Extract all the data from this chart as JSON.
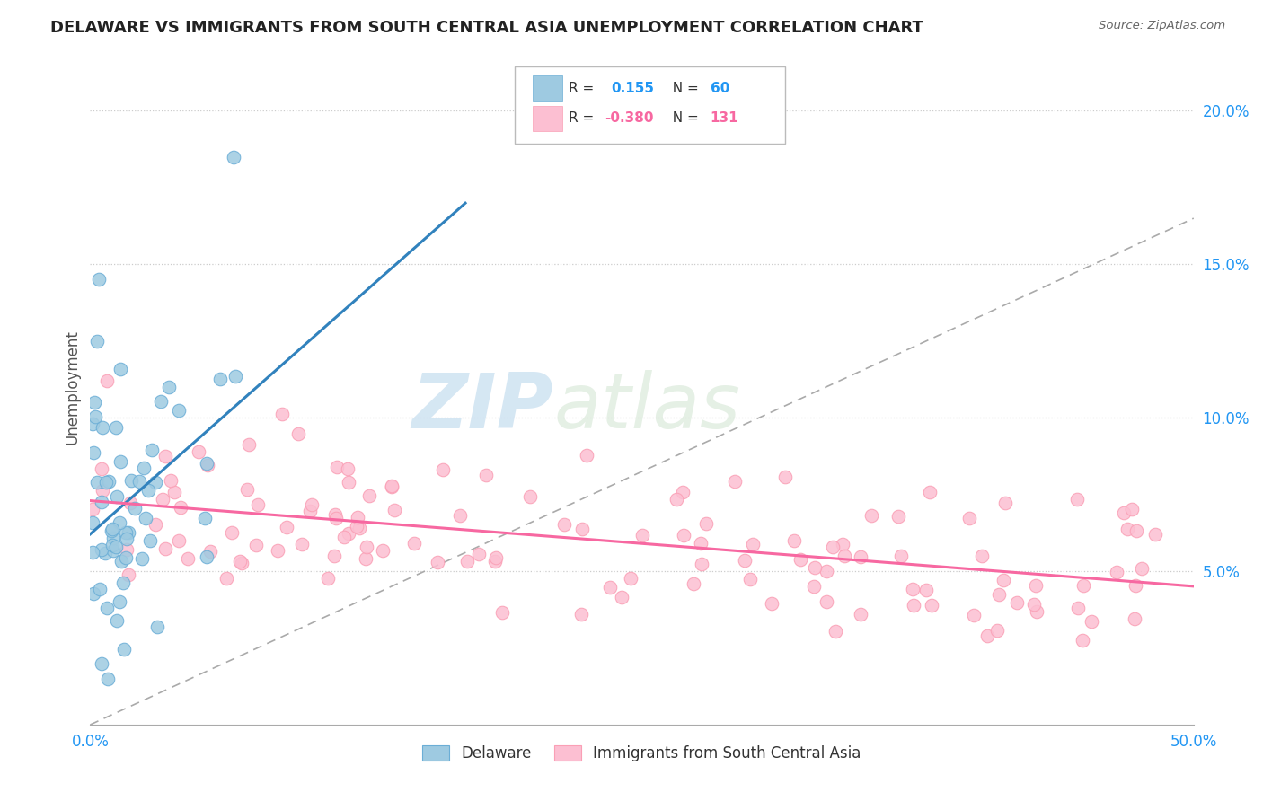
{
  "title": "DELAWARE VS IMMIGRANTS FROM SOUTH CENTRAL ASIA UNEMPLOYMENT CORRELATION CHART",
  "source": "Source: ZipAtlas.com",
  "ylabel": "Unemployment",
  "xlim": [
    0,
    0.5
  ],
  "ylim": [
    0,
    0.22
  ],
  "yticks": [
    0.05,
    0.1,
    0.15,
    0.2
  ],
  "ytick_labels": [
    "5.0%",
    "10.0%",
    "15.0%",
    "20.0%"
  ],
  "xtick_labels": [
    "0.0%",
    "50.0%"
  ],
  "blue_color": "#9ecae1",
  "pink_color": "#fcbfd2",
  "blue_line_color": "#3182bd",
  "pink_line_color": "#f768a1",
  "blue_scatter_edge": "#6baed6",
  "pink_scatter_edge": "#fa9fb5",
  "watermark_zip": "ZIP",
  "watermark_atlas": "atlas",
  "background_color": "#ffffff",
  "grid_color": "#cccccc",
  "legend_r1_val": "0.155",
  "legend_n1": "60",
  "legend_r2_val": "-0.380",
  "legend_n2": "131"
}
